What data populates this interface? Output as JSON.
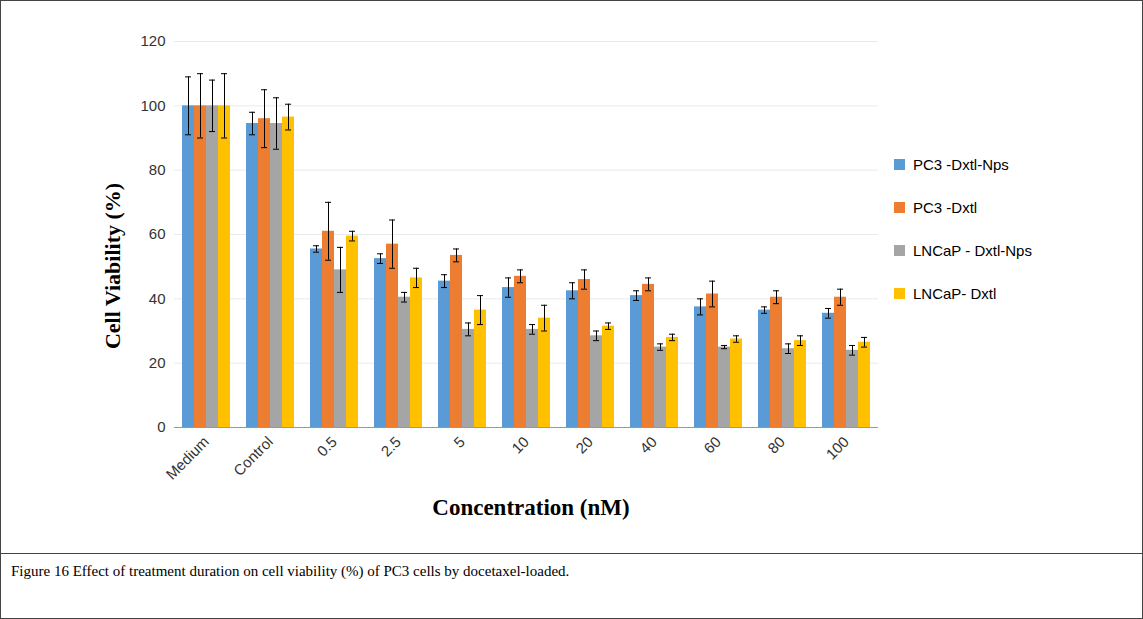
{
  "chart_data": {
    "type": "bar",
    "title": "Figure 16 Effect of treatment duration on cell viability (%) of PC3 cells by docetaxel-loaded.",
    "x_label": "Concentration (nM)",
    "y_label": "Cell Viability (%)",
    "categories": [
      "Medium",
      "Control",
      "0.5",
      "2.5",
      "5",
      "10",
      "20",
      "40",
      "60",
      "80",
      "100"
    ],
    "series": [
      {
        "name": "PC3 -Dxtl-Nps",
        "color": "#5B9BD5",
        "values": [
          100,
          94.5,
          55.5,
          52.5,
          45.5,
          43.5,
          42.5,
          41,
          37.5,
          36.5,
          35.5
        ],
        "errors": [
          9,
          3.5,
          1,
          1.5,
          2,
          3,
          2.5,
          1.5,
          2.5,
          1,
          1.5
        ]
      },
      {
        "name": "PC3 -Dxtl",
        "color": "#ED7D31",
        "values": [
          100,
          96,
          61,
          57,
          53.5,
          47,
          46,
          44.5,
          41.5,
          40.5,
          40.5
        ],
        "errors": [
          10,
          9,
          9,
          7.5,
          2,
          2,
          3,
          2,
          4,
          2,
          2.5
        ]
      },
      {
        "name": "LNCaP - Dxtl-Nps",
        "color": "#A5A5A5",
        "values": [
          100,
          94.5,
          49,
          40.5,
          30.5,
          30.5,
          28.5,
          25,
          25,
          24.5,
          24
        ],
        "errors": [
          8,
          8,
          7,
          1.5,
          2,
          1.5,
          1.5,
          1,
          0.5,
          1.5,
          1.5
        ]
      },
      {
        "name": "LNCaP- Dxtl",
        "color": "#FFC000",
        "values": [
          100,
          96.5,
          59.5,
          46.5,
          36.5,
          34,
          31.5,
          28,
          27.5,
          27,
          26.5
        ],
        "errors": [
          10,
          4,
          1.5,
          3,
          4.5,
          4,
          1,
          1,
          1,
          1.5,
          1.5
        ]
      }
    ],
    "ylim": [
      0,
      120
    ],
    "yticks": [
      0,
      20,
      40,
      60,
      80,
      100,
      120
    ],
    "grid": true,
    "legend": "right"
  }
}
